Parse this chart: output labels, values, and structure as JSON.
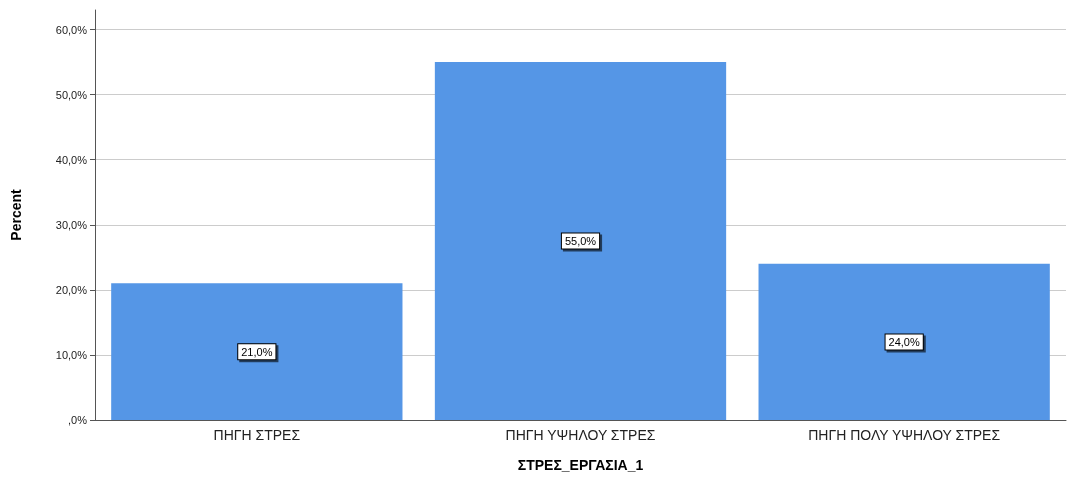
{
  "chart_data": {
    "type": "bar",
    "xlabel": "ΣΤΡΕΣ_ΕΡΓΑΣΙΑ_1",
    "ylabel": "Percent",
    "categories": [
      "ΠΗΓΗ ΣΤΡΕΣ",
      "ΠΗΓΗ ΥΨΗΛΟΥ ΣΤΡΕΣ",
      "ΠΗΓΗ ΠΟΛΥ ΥΨΗΛΟΥ ΣΤΡΕΣ"
    ],
    "values": [
      21,
      55,
      24
    ],
    "color": "#5596e6",
    "value_labels": [
      "21,0%",
      "55,0%",
      "24,0%"
    ],
    "ylim": [
      0,
      63
    ],
    "yticks": [
      {
        "value": 0,
        "label": ",0%"
      },
      {
        "value": 10,
        "label": "10,0%"
      },
      {
        "value": 20,
        "label": "20,0%"
      },
      {
        "value": 30,
        "label": "30,0%"
      },
      {
        "value": 40,
        "label": "40,0%"
      },
      {
        "value": 50,
        "label": "50,0%"
      },
      {
        "value": 60,
        "label": "60,0%"
      }
    ],
    "grid": "y"
  }
}
